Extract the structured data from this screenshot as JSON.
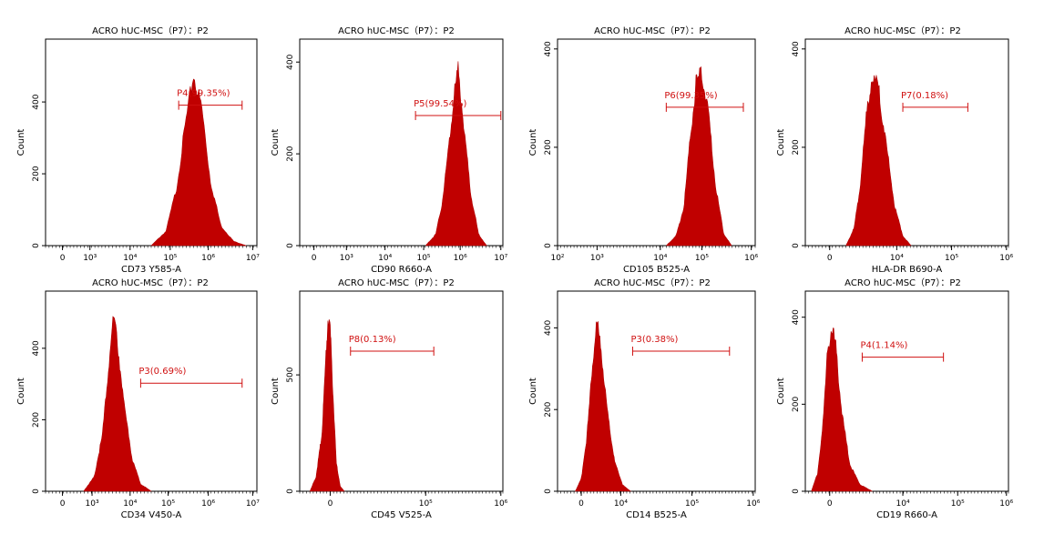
{
  "figure": {
    "colors": {
      "histogram": "#c00000",
      "histogram_edge": "#b00000",
      "gate": "#d01010",
      "axis": "#000000"
    }
  },
  "chart_data": [
    {
      "type": "area",
      "title": "ACRO hUC-MSC（P7）：P2",
      "xlabel": "CD73 Y585-A",
      "ylabel": "Count",
      "x_ticks": [
        "0",
        "10³",
        "10⁴",
        "10⁵",
        "10⁶",
        "10⁷"
      ],
      "y_ticks": [
        "0",
        "200",
        "400"
      ],
      "ylim": [
        0,
        575
      ],
      "series": [
        {
          "peak_x": "10⁶",
          "peak_count": 475,
          "x": [
            0.5,
            0.57,
            0.62,
            0.66,
            0.7,
            0.74,
            0.78,
            0.83,
            0.89,
            0.95
          ],
          "y": [
            0,
            40,
            160,
            330,
            475,
            380,
            180,
            55,
            12,
            0
          ]
        }
      ],
      "gate": {
        "label": "P4(99.35%)",
        "range": [
          "10^5.5",
          "10^6.8"
        ]
      }
    },
    {
      "type": "area",
      "title": "ACRO hUC-MSC（P7）：P2",
      "xlabel": "CD90 R660-A",
      "ylabel": "Count",
      "x_ticks": [
        "0",
        "10³",
        "10⁴",
        "10⁵",
        "10⁶",
        "10⁷"
      ],
      "y_ticks": [
        "0",
        "200",
        "400"
      ],
      "ylim": [
        0,
        450
      ],
      "series": [
        {
          "peak_x": "10⁶",
          "peak_count": 380,
          "x": [
            0.62,
            0.67,
            0.7,
            0.73,
            0.76,
            0.78,
            0.8,
            0.84,
            0.88,
            0.92
          ],
          "y": [
            0,
            25,
            90,
            200,
            330,
            380,
            300,
            120,
            25,
            0
          ]
        }
      ],
      "gate": {
        "label": "P5(99.54%)",
        "range": [
          "10^4.8",
          "10^7"
        ]
      }
    },
    {
      "type": "area",
      "title": "ACRO hUC-MSC（P7）：P2",
      "xlabel": "CD105 B525-A",
      "ylabel": "Count",
      "x_ticks": [
        "10²",
        "10³",
        "10⁴",
        "10⁵",
        "10⁶"
      ],
      "y_ticks": [
        "0",
        "200",
        "400"
      ],
      "ylim": [
        0,
        420
      ],
      "series": [
        {
          "peak_x": "10⁵",
          "peak_count": 350,
          "x": [
            0.55,
            0.6,
            0.64,
            0.67,
            0.7,
            0.73,
            0.76,
            0.8,
            0.84,
            0.88
          ],
          "y": [
            0,
            20,
            80,
            210,
            330,
            350,
            280,
            120,
            25,
            0
          ]
        }
      ],
      "gate": {
        "label": "P6(99.35%)",
        "range": [
          "10^4.1",
          "10^5.7"
        ]
      }
    },
    {
      "type": "area",
      "title": "ACRO hUC-MSC（P7）：P2",
      "xlabel": "HLA-DR B690-A",
      "ylabel": "Count",
      "x_ticks": [
        "0",
        "10⁴",
        "10⁵",
        "10⁶"
      ],
      "y_ticks": [
        "0",
        "200",
        "400"
      ],
      "ylim": [
        0,
        420
      ],
      "series": [
        {
          "peak_x": "10⁴",
          "peak_count": 350,
          "x": [
            0.2,
            0.24,
            0.27,
            0.3,
            0.33,
            0.36,
            0.4,
            0.44,
            0.48,
            0.52
          ],
          "y": [
            0,
            35,
            120,
            260,
            350,
            320,
            200,
            80,
            20,
            0
          ]
        }
      ],
      "gate": {
        "label": "P7(0.18%)",
        "range": [
          "10^4.4",
          "10^5.4"
        ]
      }
    },
    {
      "type": "area",
      "title": "ACRO hUC-MSC（P7）：P2",
      "xlabel": "CD34 V450-A",
      "ylabel": "Count",
      "x_ticks": [
        "0",
        "10³",
        "10⁴",
        "10⁵",
        "10⁶",
        "10⁷"
      ],
      "y_ticks": [
        "0",
        "200",
        "400"
      ],
      "ylim": [
        0,
        560
      ],
      "series": [
        {
          "peak_x": "10³",
          "peak_count": 480,
          "x": [
            0.18,
            0.23,
            0.27,
            0.3,
            0.32,
            0.34,
            0.37,
            0.41,
            0.45,
            0.5
          ],
          "y": [
            0,
            40,
            160,
            360,
            480,
            420,
            250,
            90,
            20,
            0
          ]
        }
      ],
      "gate": {
        "label": "P3(0.69%)",
        "range": [
          "10⁴",
          "10^6.6"
        ]
      }
    },
    {
      "type": "area",
      "title": "ACRO hUC-MSC（P7）：P2",
      "xlabel": "CD45 V525-A",
      "ylabel": "Count",
      "x_ticks": [
        "0",
        "10⁵",
        "10⁶"
      ],
      "y_ticks": [
        "0",
        "500"
      ],
      "ylim": [
        0,
        860
      ],
      "series": [
        {
          "peak_x": "0",
          "peak_count": 760,
          "x": [
            0.05,
            0.08,
            0.11,
            0.13,
            0.14,
            0.15,
            0.165,
            0.18,
            0.2,
            0.22
          ],
          "y": [
            0,
            60,
            250,
            600,
            760,
            700,
            400,
            120,
            20,
            0
          ]
        }
      ],
      "gate": {
        "label": "P8(0.13%)",
        "range": [
          "10^4.3",
          "10^5.1"
        ]
      }
    },
    {
      "type": "area",
      "title": "ACRO hUC-MSC（P7）：P2",
      "xlabel": "CD14 B525-A",
      "ylabel": "Count",
      "x_ticks": [
        "0",
        "10⁴",
        "10⁵",
        "10⁶"
      ],
      "y_ticks": [
        "0",
        "200",
        "400"
      ],
      "ylim": [
        0,
        490
      ],
      "series": [
        {
          "peak_x": "10^3.7",
          "peak_count": 410,
          "x": [
            0.09,
            0.12,
            0.15,
            0.18,
            0.2,
            0.22,
            0.25,
            0.29,
            0.33,
            0.37
          ],
          "y": [
            0,
            30,
            140,
            330,
            410,
            350,
            200,
            70,
            15,
            0
          ]
        }
      ],
      "gate": {
        "label": "P3(0.38%)",
        "range": [
          "10^4.1",
          "10^5.6"
        ]
      }
    },
    {
      "type": "area",
      "title": "ACRO hUC-MSC（P7）：P2",
      "xlabel": "CD19 R660-A",
      "ylabel": "Count",
      "x_ticks": [
        "0",
        "10⁴",
        "10⁵",
        "10⁶"
      ],
      "y_ticks": [
        "0",
        "200",
        "400"
      ],
      "ylim": [
        0,
        460
      ],
      "series": [
        {
          "peak_x": "0",
          "peak_count": 380,
          "x": [
            0.03,
            0.06,
            0.09,
            0.11,
            0.13,
            0.15,
            0.18,
            0.22,
            0.27,
            0.33
          ],
          "y": [
            0,
            40,
            170,
            330,
            380,
            330,
            180,
            60,
            15,
            0
          ]
        }
      ],
      "gate": {
        "label": "P4(1.14%)",
        "range": [
          "10^3.7",
          "10^4.9"
        ]
      }
    }
  ]
}
